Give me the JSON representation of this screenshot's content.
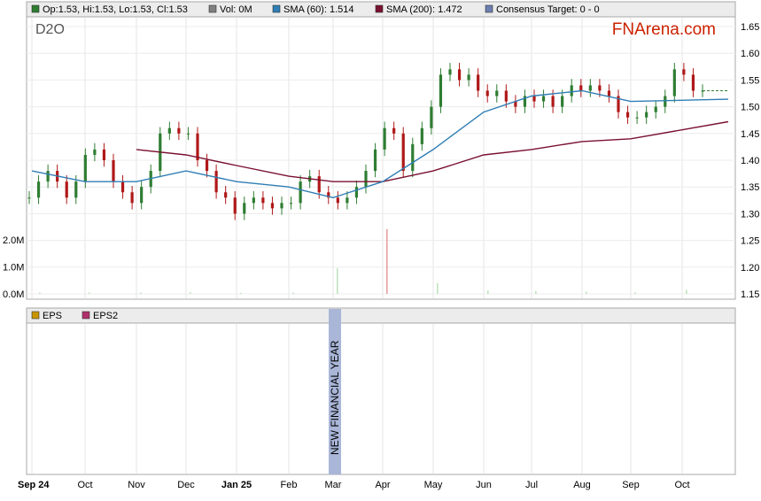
{
  "chart_data": {
    "type": "candlestick",
    "ticker": "D2O",
    "brand": {
      "prefix": "FN",
      "suffix": "Arena.com",
      "color": "#cc2200"
    },
    "legend": [
      {
        "label": "Op:1.53, Hi:1.53, Lo:1.53, Cl:1.53",
        "color": "#2e7d32"
      },
      {
        "label": "Vol: 0M",
        "color": "#808080"
      },
      {
        "label": "SMA (60): 1.514",
        "color": "#2f7eb5"
      },
      {
        "label": "SMA (200): 1.472",
        "color": "#7a1030"
      },
      {
        "label": "Consensus Target: 0 - 0",
        "color": "#6c7fb0"
      }
    ],
    "price_axis": {
      "min": 1.15,
      "max": 1.65,
      "ticks": [
        "1.65",
        "1.60",
        "1.55",
        "1.50",
        "1.45",
        "1.40",
        "1.35",
        "1.30",
        "1.25",
        "1.20",
        "1.15"
      ]
    },
    "volume_axis": {
      "ticks": [
        "2.0M",
        "1.0M",
        "0.0M"
      ]
    },
    "x_months": [
      "Sep 24",
      "Oct",
      "Nov",
      "Dec",
      "Jan 25",
      "Feb",
      "Mar",
      "Apr",
      "May",
      "Jun",
      "Jul",
      "Aug",
      "Sep",
      "Oct"
    ],
    "last_close": 1.53,
    "close_series": [
      {
        "date": "Sep 24",
        "close": 1.33
      },
      {
        "date": "Sep 24",
        "close": 1.36
      },
      {
        "date": "Sep 24",
        "close": 1.38
      },
      {
        "date": "Sep 24",
        "close": 1.36
      },
      {
        "date": "Sep 24",
        "close": 1.33
      },
      {
        "date": "Oct",
        "close": 1.36
      },
      {
        "date": "Oct",
        "close": 1.41
      },
      {
        "date": "Oct",
        "close": 1.42
      },
      {
        "date": "Oct",
        "close": 1.4
      },
      {
        "date": "Oct",
        "close": 1.36
      },
      {
        "date": "Oct",
        "close": 1.34
      },
      {
        "date": "Oct",
        "close": 1.32
      },
      {
        "date": "Oct",
        "close": 1.35
      },
      {
        "date": "Nov",
        "close": 1.38
      },
      {
        "date": "Nov",
        "close": 1.45
      },
      {
        "date": "Nov",
        "close": 1.46
      },
      {
        "date": "Nov",
        "close": 1.45
      },
      {
        "date": "Nov",
        "close": 1.45
      },
      {
        "date": "Dec",
        "close": 1.4
      },
      {
        "date": "Dec",
        "close": 1.38
      },
      {
        "date": "Dec",
        "close": 1.34
      },
      {
        "date": "Dec",
        "close": 1.33
      },
      {
        "date": "Dec",
        "close": 1.3
      },
      {
        "date": "Jan 25",
        "close": 1.32
      },
      {
        "date": "Jan 25",
        "close": 1.33
      },
      {
        "date": "Jan 25",
        "close": 1.32
      },
      {
        "date": "Jan 25",
        "close": 1.31
      },
      {
        "date": "Jan 25",
        "close": 1.32
      },
      {
        "date": "Feb",
        "close": 1.32
      },
      {
        "date": "Feb",
        "close": 1.36
      },
      {
        "date": "Feb",
        "close": 1.37
      },
      {
        "date": "Feb",
        "close": 1.34
      },
      {
        "date": "Feb",
        "close": 1.33
      },
      {
        "date": "Mar",
        "close": 1.32
      },
      {
        "date": "Mar",
        "close": 1.33
      },
      {
        "date": "Mar",
        "close": 1.35
      },
      {
        "date": "Mar",
        "close": 1.38
      },
      {
        "date": "Mar",
        "close": 1.42
      },
      {
        "date": "Apr",
        "close": 1.46
      },
      {
        "date": "Apr",
        "close": 1.45
      },
      {
        "date": "Apr",
        "close": 1.38
      },
      {
        "date": "Apr",
        "close": 1.43
      },
      {
        "date": "Apr",
        "close": 1.46
      },
      {
        "date": "May",
        "close": 1.5
      },
      {
        "date": "May",
        "close": 1.56
      },
      {
        "date": "May",
        "close": 1.57
      },
      {
        "date": "May",
        "close": 1.55
      },
      {
        "date": "May",
        "close": 1.56
      },
      {
        "date": "Jun",
        "close": 1.53
      },
      {
        "date": "Jun",
        "close": 1.52
      },
      {
        "date": "Jun",
        "close": 1.53
      },
      {
        "date": "Jun",
        "close": 1.51
      },
      {
        "date": "Jun",
        "close": 1.5
      },
      {
        "date": "Jul",
        "close": 1.52
      },
      {
        "date": "Jul",
        "close": 1.51
      },
      {
        "date": "Jul",
        "close": 1.52
      },
      {
        "date": "Jul",
        "close": 1.5
      },
      {
        "date": "Jul",
        "close": 1.52
      },
      {
        "date": "Aug",
        "close": 1.54
      },
      {
        "date": "Aug",
        "close": 1.53
      },
      {
        "date": "Aug",
        "close": 1.54
      },
      {
        "date": "Aug",
        "close": 1.53
      },
      {
        "date": "Aug",
        "close": 1.52
      },
      {
        "date": "Sep",
        "close": 1.49
      },
      {
        "date": "Sep",
        "close": 1.48
      },
      {
        "date": "Sep",
        "close": 1.48
      },
      {
        "date": "Sep",
        "close": 1.49
      },
      {
        "date": "Sep",
        "close": 1.5
      },
      {
        "date": "Oct",
        "close": 1.52
      },
      {
        "date": "Oct",
        "close": 1.57
      },
      {
        "date": "Oct",
        "close": 1.56
      },
      {
        "date": "Oct",
        "close": 1.53
      },
      {
        "date": "Oct",
        "close": 1.53
      }
    ],
    "sma60": [
      {
        "date": "Sep 24",
        "value": 1.38
      },
      {
        "date": "Oct",
        "value": 1.36
      },
      {
        "date": "Nov",
        "value": 1.36
      },
      {
        "date": "Dec",
        "value": 1.38
      },
      {
        "date": "Jan 25",
        "value": 1.36
      },
      {
        "date": "Feb",
        "value": 1.35
      },
      {
        "date": "Mar",
        "value": 1.33
      },
      {
        "date": "Apr",
        "value": 1.36
      },
      {
        "date": "May",
        "value": 1.42
      },
      {
        "date": "Jun",
        "value": 1.49
      },
      {
        "date": "Jul",
        "value": 1.52
      },
      {
        "date": "Aug",
        "value": 1.53
      },
      {
        "date": "Sep",
        "value": 1.51
      },
      {
        "date": "Oct",
        "value": 1.514
      }
    ],
    "sma200": [
      {
        "date": "Nov",
        "value": 1.42
      },
      {
        "date": "Dec",
        "value": 1.41
      },
      {
        "date": "Jan 25",
        "value": 1.39
      },
      {
        "date": "Feb",
        "value": 1.37
      },
      {
        "date": "Mar",
        "value": 1.36
      },
      {
        "date": "Apr",
        "value": 1.36
      },
      {
        "date": "May",
        "value": 1.38
      },
      {
        "date": "Jun",
        "value": 1.41
      },
      {
        "date": "Jul",
        "value": 1.42
      },
      {
        "date": "Aug",
        "value": 1.435
      },
      {
        "date": "Sep",
        "value": 1.44
      },
      {
        "date": "Oct",
        "value": 1.472
      }
    ],
    "volume_series": [
      {
        "date": "Sep 24",
        "vol": 0.05
      },
      {
        "date": "Oct",
        "vol": 0.05
      },
      {
        "date": "Nov",
        "vol": 0.05
      },
      {
        "date": "Dec",
        "vol": 0.06
      },
      {
        "date": "Jan 25",
        "vol": 0.04
      },
      {
        "date": "Feb",
        "vol": 0.05
      },
      {
        "date": "Mar",
        "vol": 0.95
      },
      {
        "date": "Apr",
        "vol": 2.4
      },
      {
        "date": "May",
        "vol": 0.4
      },
      {
        "date": "Jun",
        "vol": 0.12
      },
      {
        "date": "Jul",
        "vol": 0.1
      },
      {
        "date": "Aug",
        "vol": 0.08
      },
      {
        "date": "Sep",
        "vol": 0.06
      },
      {
        "date": "Oct",
        "vol": 0.15
      }
    ],
    "eps_panel": {
      "legend": [
        {
          "label": "EPS",
          "color": "#c89500"
        },
        {
          "label": "EPS2",
          "color": "#b0306c"
        }
      ],
      "marker": {
        "label": "NEW FINANCIAL YEAR",
        "month": "Mar",
        "color": "#a9b6d8"
      }
    }
  }
}
